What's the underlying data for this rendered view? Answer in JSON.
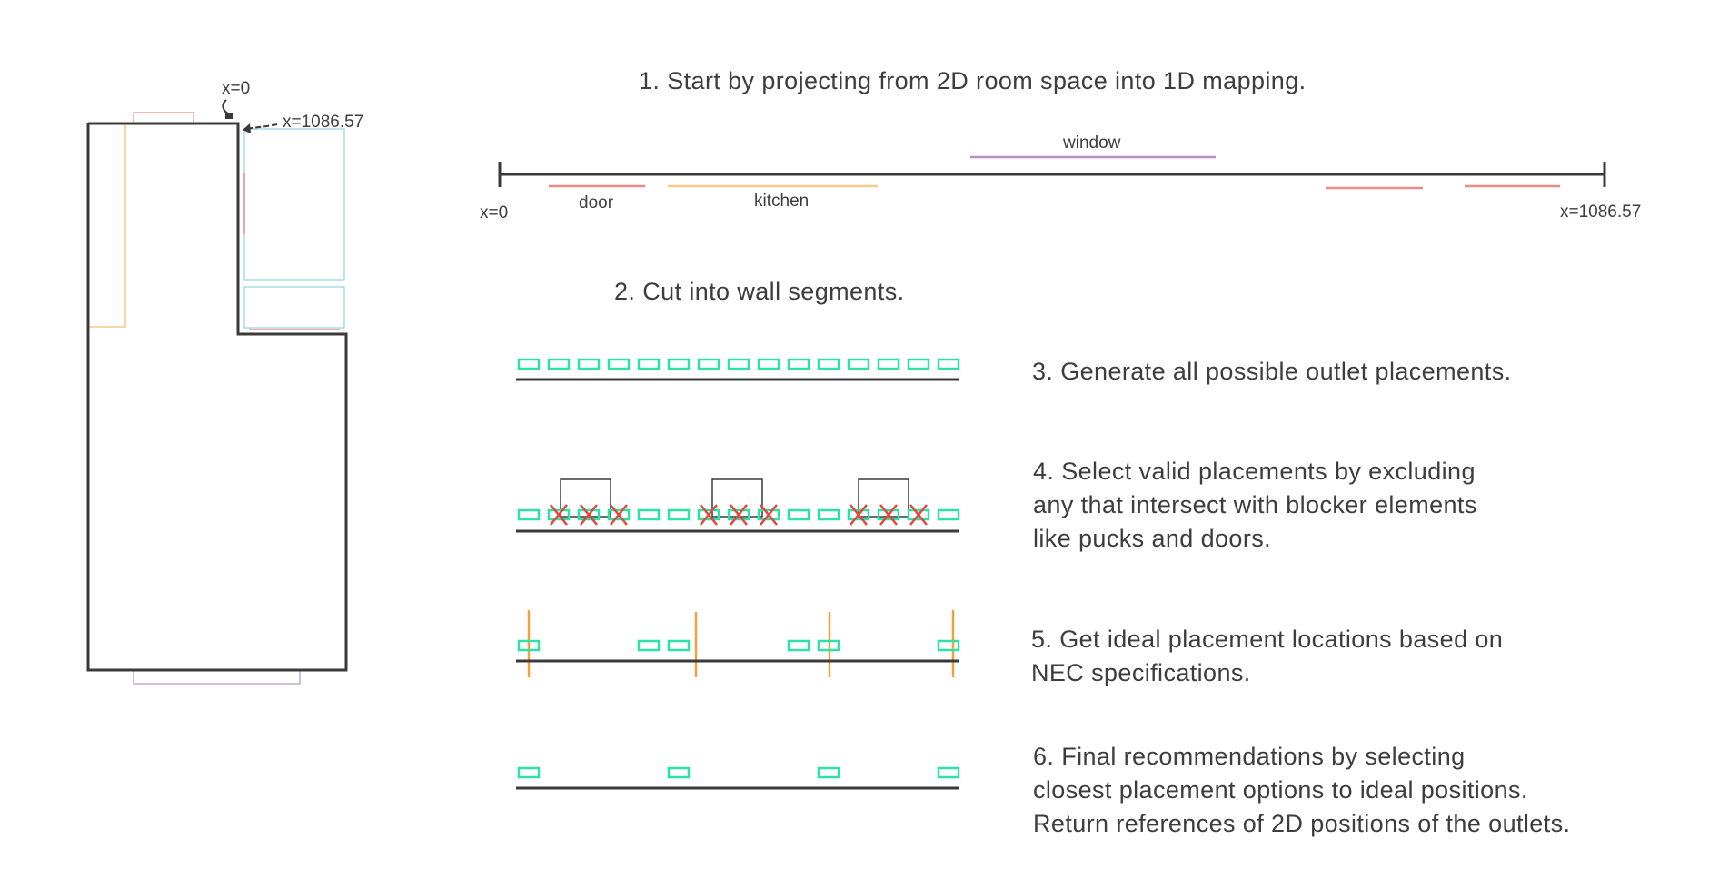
{
  "colors": {
    "wall": "#3a3a3a",
    "outlet": "#2fe0a8",
    "reject": "#e8443a",
    "ideal": "#f2a23a",
    "door": "#ef8a86",
    "kitchen": "#f7c98a",
    "window": "#b890c0",
    "puck": "#90d4e0"
  },
  "floorplan": {
    "start_label": "x=0",
    "end_label": "x=1086.57"
  },
  "mapping": {
    "step": "1. Start by projecting from 2D room space into 1D mapping.",
    "start_label": "x=0",
    "end_label": "x=1086.57",
    "window_label": "window",
    "door_label": "door",
    "kitchen_label": "kitchen"
  },
  "steps": {
    "s2": "2. Cut into wall segments.",
    "s3": "3. Generate all possible outlet placements.",
    "s4": [
      "4. Select valid placements by excluding",
      "any that intersect with blocker elements",
      "like pucks and doors."
    ],
    "s5": [
      "5. Get ideal placement locations based on",
      "NEC specifications."
    ],
    "s6": [
      "6. Final recommendations by selecting",
      "closest placement options to ideal positions.",
      "Return references of 2D positions of the outlets."
    ]
  }
}
